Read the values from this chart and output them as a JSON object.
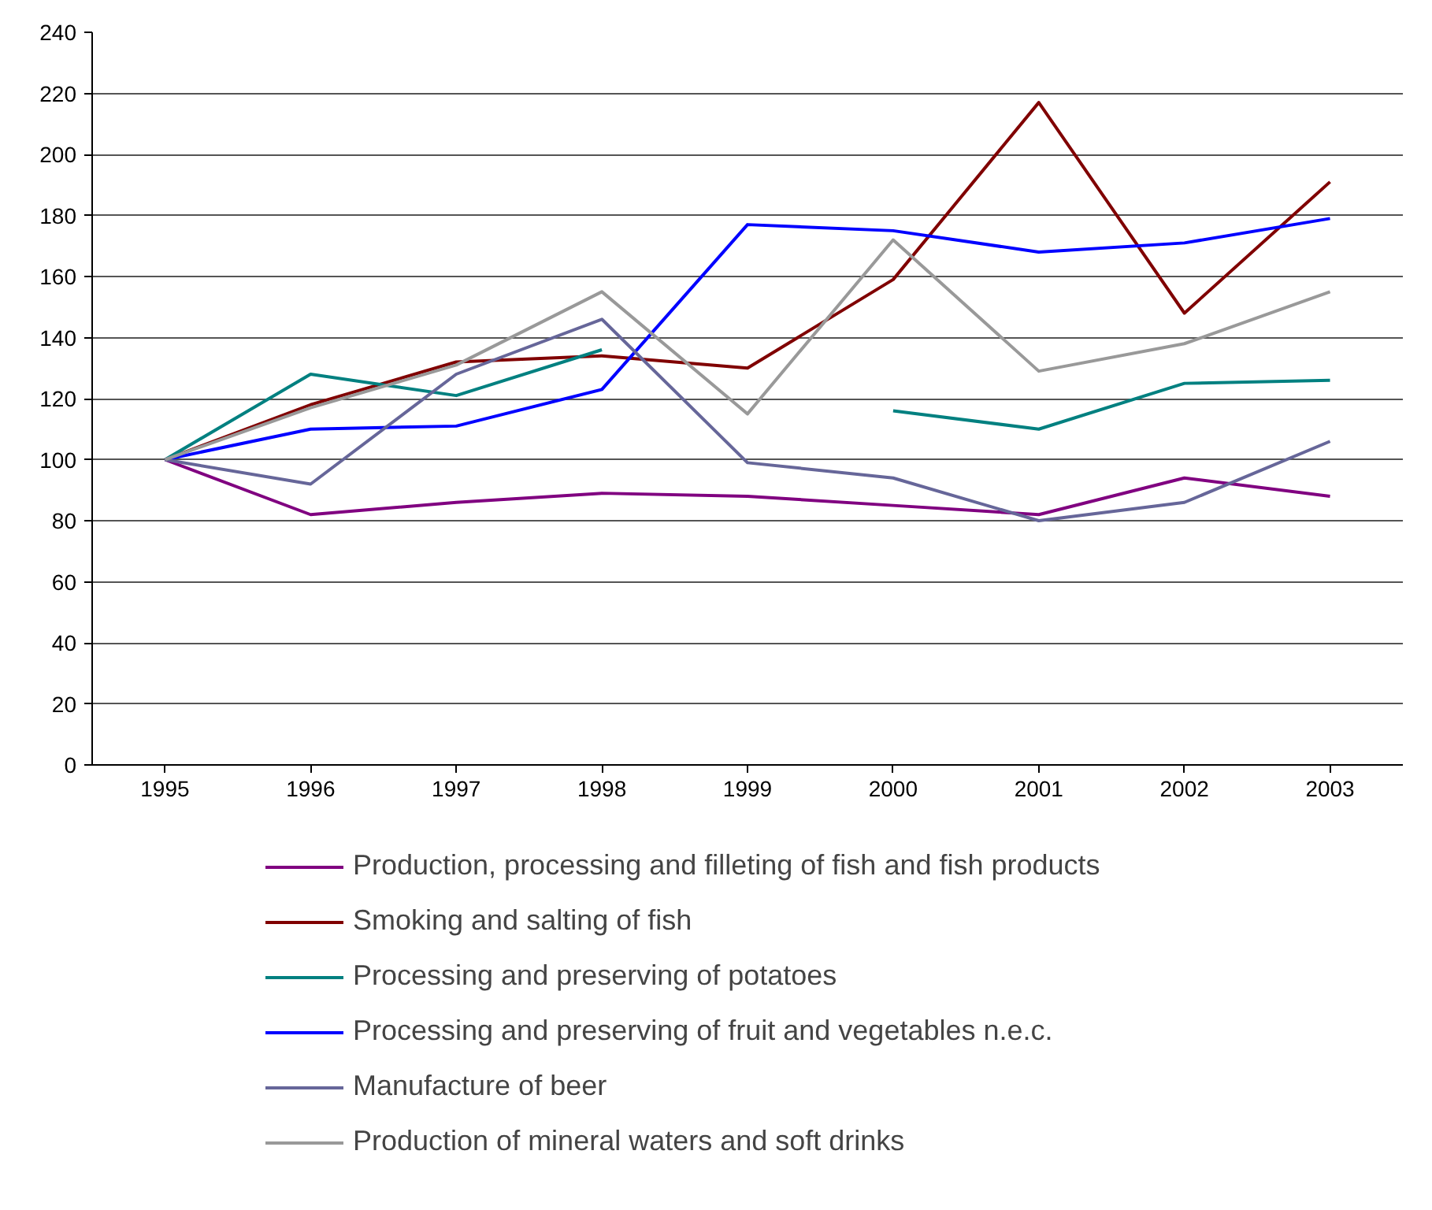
{
  "chart_data": {
    "type": "line",
    "categories": [
      "1995",
      "1996",
      "1997",
      "1998",
      "1999",
      "2000",
      "2001",
      "2002",
      "2003"
    ],
    "series": [
      {
        "name": "Production, processing and filleting of fish and fish products",
        "color": "#800080",
        "values": [
          100,
          82,
          86,
          89,
          88,
          85,
          82,
          94,
          88
        ]
      },
      {
        "name": "Smoking and salting of fish",
        "color": "#800000",
        "values": [
          100,
          118,
          132,
          134,
          130,
          159,
          217,
          148,
          191
        ]
      },
      {
        "name": "Processing and preserving of potatoes",
        "color": "#008080",
        "values": [
          100,
          128,
          121,
          136,
          null,
          116,
          110,
          125,
          126
        ]
      },
      {
        "name": "Processing and preserving of fruit and vegetables n.e.c.",
        "color": "#0000ff",
        "values": [
          100,
          110,
          111,
          123,
          177,
          175,
          168,
          171,
          179
        ]
      },
      {
        "name": "Manufacture of beer",
        "color": "#666699",
        "values": [
          100,
          92,
          128,
          146,
          99,
          94,
          80,
          86,
          106
        ]
      },
      {
        "name": "Production of mineral waters and soft drinks",
        "color": "#999999",
        "values": [
          100,
          117,
          131,
          155,
          115,
          172,
          129,
          138,
          155
        ]
      }
    ],
    "ylim": [
      0,
      240
    ],
    "yticks": [
      0,
      20,
      40,
      60,
      80,
      100,
      120,
      140,
      160,
      180,
      200,
      220,
      240
    ],
    "grid": "y",
    "legend": "bottom",
    "marker": "none",
    "line_style": "solid"
  }
}
